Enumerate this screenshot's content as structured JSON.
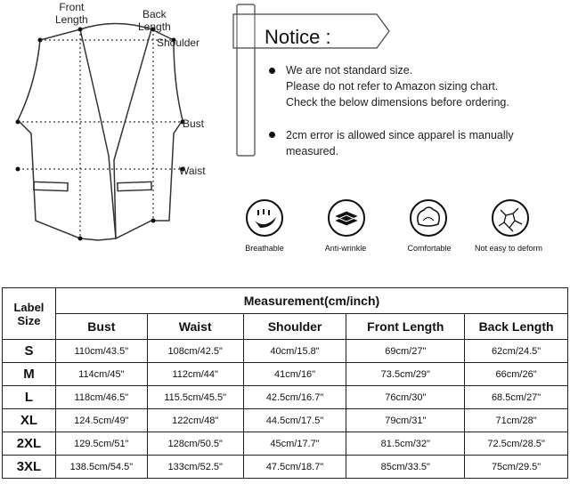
{
  "diagram": {
    "labels": {
      "front_length": "Front\nLength",
      "back_length": "Back\nLength",
      "shoulder": "Shoulder",
      "bust": "Bust",
      "waist": "Waist"
    }
  },
  "notice": {
    "title": "Notice :",
    "bullets": [
      [
        "We are not standard size.",
        "Please do not refer to Amazon sizing chart.",
        "Check the below dimensions before ordering."
      ],
      [
        "2cm error is allowed since apparel is manually",
        "measured."
      ]
    ]
  },
  "features": [
    {
      "label": "Breathable",
      "icon": "steam-icon"
    },
    {
      "label": "Anti-wrinkle",
      "icon": "layers-icon"
    },
    {
      "label": "Comfortable",
      "icon": "cloud-pillow-icon"
    },
    {
      "label": "Not easy to deform",
      "icon": "crack-icon"
    }
  ],
  "table": {
    "label_header": "Label\nSize",
    "group_header": "Measurement(cm/inch)",
    "columns": [
      "Bust",
      "Waist",
      "Shoulder",
      "Front Length",
      "Back Length"
    ],
    "rows": [
      {
        "size": "S",
        "values": [
          "110cm/43.5\"",
          "108cm/42.5\"",
          "40cm/15.8\"",
          "69cm/27\"",
          "62cm/24.5\""
        ]
      },
      {
        "size": "M",
        "values": [
          "114cm/45\"",
          "112cm/44\"",
          "41cm/16\"",
          "73.5cm/29\"",
          "66cm/26\""
        ]
      },
      {
        "size": "L",
        "values": [
          "118cm/46.5\"",
          "115.5cm/45.5\"",
          "42.5cm/16.7\"",
          "76cm/30\"",
          "68.5cm/27\""
        ]
      },
      {
        "size": "XL",
        "values": [
          "124.5cm/49\"",
          "122cm/48\"",
          "44.5cm/17.5\"",
          "79cm/31\"",
          "71cm/28\""
        ]
      },
      {
        "size": "2XL",
        "values": [
          "129.5cm/51\"",
          "128cm/50.5\"",
          "45cm/17.7\"",
          "81.5cm/32\"",
          "72.5cm/28.5\""
        ]
      },
      {
        "size": "3XL",
        "values": [
          "138.5cm/54.5\"",
          "133cm/52.5\"",
          "47.5cm/18.7\"",
          "85cm/33.5\"",
          "75cm/29.5\""
        ]
      }
    ]
  }
}
